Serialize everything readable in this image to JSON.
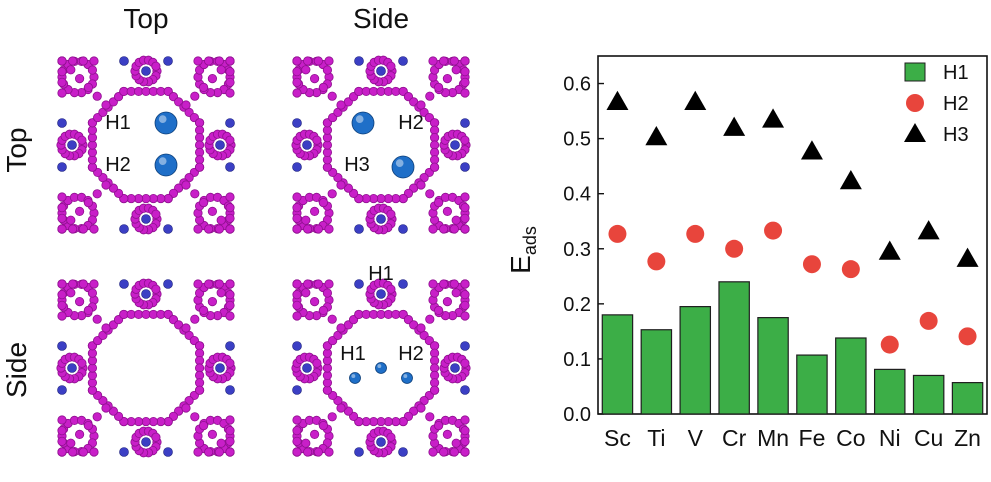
{
  "panel": {
    "col_labels": [
      "Top",
      "Side"
    ],
    "row_labels": [
      "Top",
      "Side"
    ],
    "cells": [
      {
        "labels": [
          "H1",
          "H2"
        ]
      },
      {
        "labels": [
          "H2",
          "H3"
        ]
      },
      {
        "labels": []
      },
      {
        "labels": [
          "H1",
          "H1",
          "H2"
        ]
      }
    ]
  },
  "colors": {
    "framework": "#c81fc8",
    "framework_dark": "#8f0f8f",
    "linker": "#3b3fc4",
    "adsorbate": "#1f6fc8",
    "h1": "#3cae47",
    "h2": "#e8453c",
    "h3": "#000000"
  },
  "chart_data": {
    "type": "bar",
    "categories": [
      "Sc",
      "Ti",
      "V",
      "Cr",
      "Mn",
      "Fe",
      "Co",
      "Ni",
      "Cu",
      "Zn"
    ],
    "series": [
      {
        "name": "H1",
        "marker": "bar",
        "values": [
          0.18,
          0.153,
          0.195,
          0.24,
          0.175,
          0.107,
          0.138,
          0.081,
          0.07,
          0.057
        ]
      },
      {
        "name": "H2",
        "marker": "circle",
        "values": [
          0.327,
          0.277,
          0.327,
          0.3,
          0.333,
          0.272,
          0.263,
          0.126,
          0.169,
          0.141
        ]
      },
      {
        "name": "H3",
        "marker": "triangle",
        "values": [
          0.567,
          0.503,
          0.567,
          0.52,
          0.535,
          0.477,
          0.423,
          0.295,
          0.332,
          0.282
        ]
      }
    ],
    "ylabel_main": "E",
    "ylabel_sub": "ads",
    "xlabel": "",
    "ylim": [
      0,
      0.65
    ],
    "yticks": [
      "0.0",
      "0.1",
      "0.2",
      "0.3",
      "0.4",
      "0.5",
      "0.6"
    ],
    "legend_position": "top-right"
  }
}
